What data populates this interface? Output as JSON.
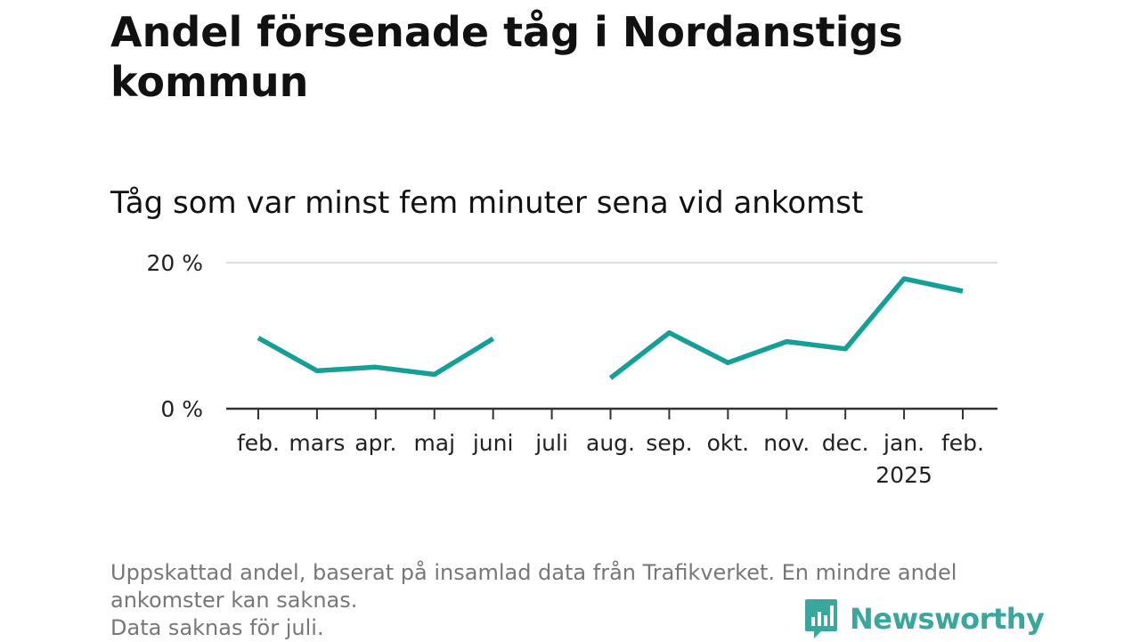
{
  "title": "Andel försenade tåg i Nordanstigs kommun",
  "subtitle": "Tåg som var minst fem minuter sena vid ankomst",
  "footnote": {
    "line1": "Uppskattad andel, baserat på insamlad data från Trafikverket. En mindre andel",
    "line2": "ankomster kan saknas.",
    "line3": "Data saknas för juli."
  },
  "brand": {
    "name": "Newsworthy",
    "icon": "newsworthy-logo-icon",
    "color": "#3aa79c"
  },
  "chart_data": {
    "type": "line",
    "categories": [
      "feb.",
      "mars",
      "apr.",
      "maj",
      "juni",
      "juli",
      "aug.",
      "sep.",
      "okt.",
      "nov.",
      "dec.",
      "jan.",
      "feb."
    ],
    "year_label": "2025",
    "series": [
      {
        "color": "#14a096",
        "values": [
          9.7,
          5.2,
          5.7,
          4.7,
          9.6,
          null,
          4.2,
          10.4,
          6.3,
          9.2,
          8.2,
          17.8,
          16.1
        ]
      }
    ],
    "yticks": [
      "0 %",
      "20 %"
    ],
    "ytick_values": [
      0,
      20
    ],
    "ylim": [
      0,
      20
    ],
    "grid": true
  }
}
